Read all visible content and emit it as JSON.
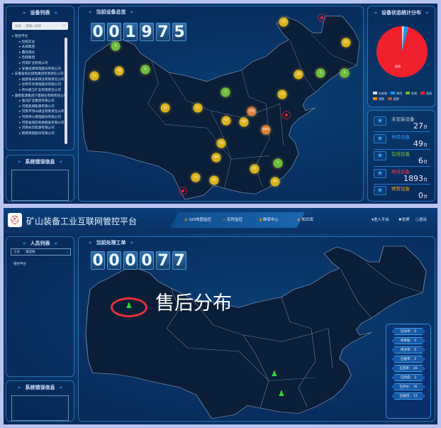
{
  "top": {
    "device_list": {
      "title": "设备列表",
      "search_type": "设备",
      "search_placeholder": "请输入搜索",
      "tree": [
        {
          "label": "管控平台",
          "level": 0
        },
        {
          "label": "恒拓实业",
          "level": 1
        },
        {
          "label": "永煤集团",
          "level": 1
        },
        {
          "label": "鑫旺煤化",
          "level": 1
        },
        {
          "label": "晋煤集团",
          "level": 1
        },
        {
          "label": "河南矿业有限公司",
          "level": 1
        },
        {
          "label": "安徽恒源煤电股份有限公司",
          "level": 1
        },
        {
          "label": "安徽省皖北煤电集团有限责任公司",
          "level": 0
        },
        {
          "label": "福建省永安煤业有限责任公司",
          "level": 1
        },
        {
          "label": "甘肃华亭煤电股份有限公司",
          "level": 1
        },
        {
          "label": "贵州盘江矿业有限责任公司",
          "level": 1
        },
        {
          "label": "国家能源集团宁夏煤业有限责任公司",
          "level": 0
        },
        {
          "label": "淮北矿业集团有限公司",
          "level": 1
        },
        {
          "label": "河南焦煤能源有限公司",
          "level": 1
        },
        {
          "label": "河南平顶山煤业有限责任公司",
          "level": 1
        },
        {
          "label": "河南神火煤电股份有限公司",
          "level": 1
        },
        {
          "label": "河南省煤炭地质勘查有限公司",
          "level": 1
        },
        {
          "label": "河南永华能源有限公司",
          "level": 1
        },
        {
          "label": "鹤壁煤电股份有限公司",
          "level": 1
        }
      ]
    },
    "error_panel": {
      "title": "系统错误信息"
    },
    "map": {
      "title": "当前设备总览",
      "counter": "001975",
      "markers": [
        {
          "value": "19",
          "status": "yellow"
        },
        {
          "value": "55",
          "status": "yellow"
        },
        {
          "value": "4",
          "status": "green"
        },
        {
          "value": "6",
          "status": "green"
        },
        {
          "value": "38",
          "status": "yellow"
        },
        {
          "value": "13",
          "status": "yellow"
        },
        {
          "value": "28",
          "status": "yellow"
        },
        {
          "value": "5",
          "status": "green"
        },
        {
          "value": "5",
          "status": "green"
        },
        {
          "value": "7",
          "status": "green"
        },
        {
          "value": "23",
          "status": "yellow"
        },
        {
          "value": "11",
          "status": "yellow"
        },
        {
          "value": "11",
          "status": "yellow"
        },
        {
          "value": "592",
          "status": "orange"
        },
        {
          "value": "54",
          "status": "yellow"
        },
        {
          "value": "64",
          "status": "yellow"
        },
        {
          "value": "964",
          "status": "orange"
        },
        {
          "value": "38",
          "status": "yellow"
        },
        {
          "value": "86",
          "status": "yellow"
        },
        {
          "value": "7",
          "status": "green"
        },
        {
          "value": "91",
          "status": "yellow"
        },
        {
          "value": "16",
          "status": "yellow"
        },
        {
          "value": "60",
          "status": "yellow"
        },
        {
          "value": "40",
          "status": "yellow"
        }
      ],
      "marker_colors": {
        "yellow": "#d9b21c",
        "green": "#6cbf3a",
        "orange": "#d9823c"
      }
    },
    "pie": {
      "title": "设备状态统计分布",
      "center_label": "离线",
      "slices": [
        {
          "label": "未安装",
          "value": 27,
          "color": "#d8d8d8"
        },
        {
          "label": "停用",
          "value": 49,
          "color": "#1e90ff"
        },
        {
          "label": "在线",
          "value": 6,
          "color": "#7ab828"
        },
        {
          "label": "离线",
          "value": 1893,
          "color": "#f0202c"
        },
        {
          "label": "预警",
          "value": 0,
          "color": "#f08a10"
        },
        {
          "label": "报警",
          "value": 0,
          "color": "#c0501c"
        }
      ]
    },
    "stats": [
      {
        "label": "未安装设备",
        "value": "27",
        "unit": "台",
        "color": "#c8d0da"
      },
      {
        "label": "停用设备",
        "value": "49",
        "unit": "台",
        "color": "#2f8fff"
      },
      {
        "label": "在线设备",
        "value": "6",
        "unit": "台",
        "color": "#7ac23a"
      },
      {
        "label": "离线设备",
        "value": "1893",
        "unit": "台",
        "color": "#ff3040"
      },
      {
        "label": "预警设备",
        "value": "0",
        "unit": "台",
        "color": "#f09a20"
      }
    ]
  },
  "bottom": {
    "app_title": "矿山装备工业互联网管控平台",
    "nav": [
      {
        "label": "GIS地图监控",
        "icon": "globe-icon",
        "color": "#f08a20"
      },
      {
        "label": "实时监控",
        "icon": "monitor-icon",
        "color": "#f08a20"
      },
      {
        "label": "维保中心",
        "icon": "chart-icon",
        "color": "#f08a20"
      },
      {
        "label": "知识库",
        "icon": "book-icon",
        "color": "#f08a20"
      }
    ],
    "actions": [
      {
        "label": "进入平台",
        "icon": "enter-icon"
      },
      {
        "label": "全屏",
        "icon": "fullscreen-icon"
      },
      {
        "label": "退出",
        "icon": "power-icon"
      }
    ],
    "people": {
      "title": "人员列表",
      "filter": "工号",
      "input": "请选择",
      "tree_root": "管控平台"
    },
    "error_panel": {
      "title": "系统错误信息"
    },
    "map": {
      "title": "当前处理工单",
      "counter": "000077",
      "annotation": "售后分布"
    },
    "orders": [
      {
        "label": "已派单",
        "value": "0"
      },
      {
        "label": "待审核",
        "value": "5"
      },
      {
        "label": "待派单",
        "value": "0"
      },
      {
        "label": "已接单",
        "value": "2"
      },
      {
        "label": "已签单",
        "value": "20"
      },
      {
        "label": "已完成",
        "value": "2"
      },
      {
        "label": "已评价",
        "value": "35"
      },
      {
        "label": "已驳回",
        "value": "13"
      }
    ]
  }
}
